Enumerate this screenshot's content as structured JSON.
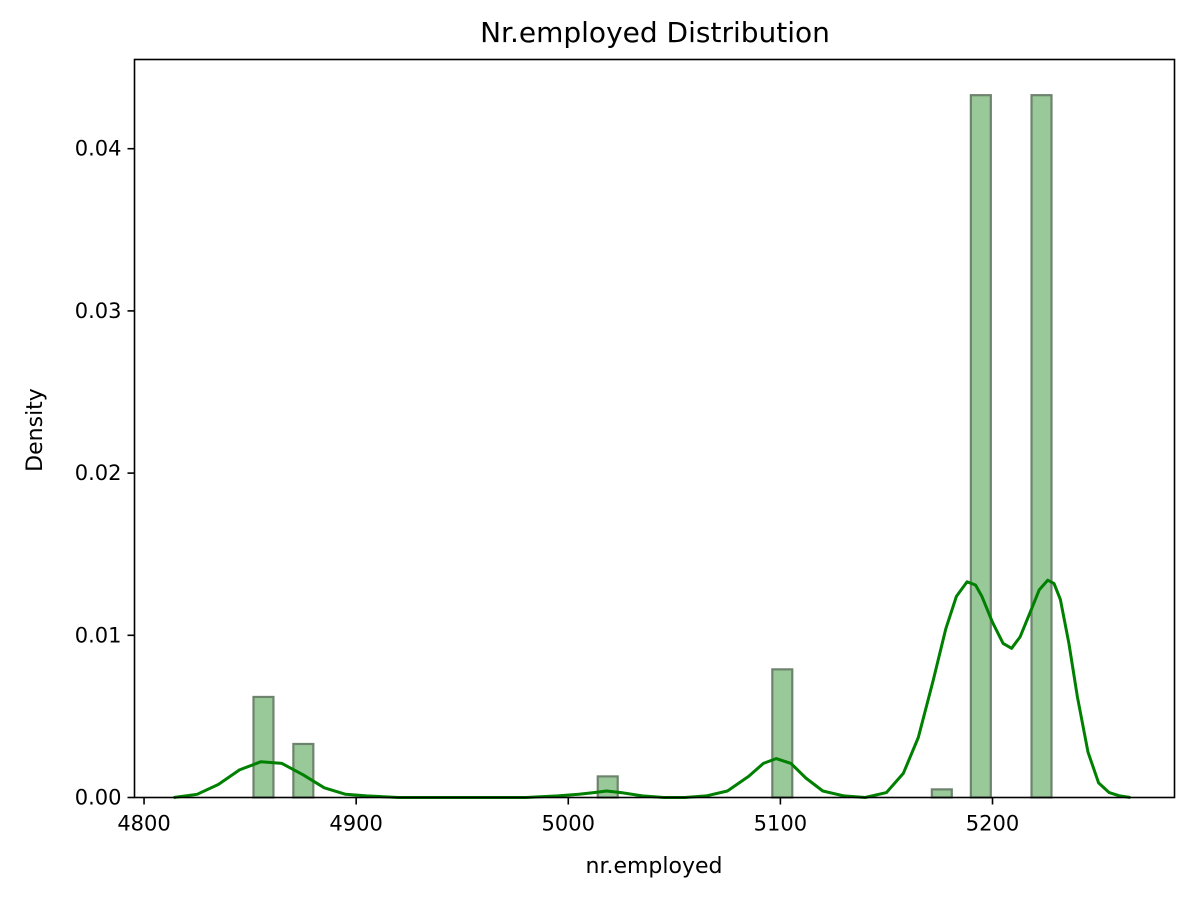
{
  "chart_data": {
    "type": "bar",
    "title": "Nr.employed Distribution",
    "xlabel": "nr.employed",
    "ylabel": "Density",
    "xlim": [
      4795.5,
      5285.8
    ],
    "ylim": [
      0,
      0.0455
    ],
    "xticks": [
      4800,
      4900,
      5000,
      5100,
      5200
    ],
    "xtick_labels": [
      "4800",
      "4900",
      "5000",
      "5100",
      "5200"
    ],
    "yticks": [
      0.0,
      0.01,
      0.02,
      0.03,
      0.04
    ],
    "ytick_labels": [
      "0.00",
      "0.01",
      "0.02",
      "0.03",
      "0.04"
    ],
    "grid": false,
    "histogram": {
      "name": "",
      "color": "#99c999",
      "edge_color": "#6e836e",
      "bins": [
        {
          "x0": 4851.6,
          "x1": 4861.0,
          "value": 0.0062
        },
        {
          "x0": 4870.4,
          "x1": 4879.8,
          "value": 0.0033
        },
        {
          "x0": 5013.9,
          "x1": 5023.3,
          "value": 0.0013
        },
        {
          "x0": 5096.2,
          "x1": 5105.6,
          "value": 0.0079
        },
        {
          "x0": 5171.4,
          "x1": 5180.8,
          "value": 0.0005
        },
        {
          "x0": 5189.8,
          "x1": 5199.2,
          "value": 0.0433
        },
        {
          "x0": 5218.4,
          "x1": 5227.8,
          "value": 0.0433
        }
      ]
    },
    "kde": {
      "name": "",
      "color": "#008000",
      "x": [
        4814,
        4825,
        4835,
        4845,
        4855,
        4865,
        4875,
        4885,
        4895,
        4905,
        4920,
        4940,
        4960,
        4980,
        4995,
        5005,
        5012,
        5018,
        5025,
        5035,
        5045,
        5055,
        5065,
        5075,
        5085,
        5092,
        5098,
        5105,
        5112,
        5120,
        5130,
        5140,
        5150,
        5158,
        5165,
        5172,
        5178,
        5183,
        5188,
        5192,
        5195,
        5200,
        5205,
        5209,
        5213,
        5218,
        5222,
        5226,
        5229,
        5232,
        5236,
        5240,
        5245,
        5250,
        5255,
        5260,
        5265
      ],
      "y": [
        0.0,
        0.0002,
        0.0008,
        0.0017,
        0.0022,
        0.0021,
        0.0014,
        0.0006,
        0.0002,
        0.0001,
        0.0,
        0.0,
        0.0,
        0.0,
        0.0001,
        0.0002,
        0.0003,
        0.0004,
        0.0003,
        0.0001,
        0.0,
        0.0,
        0.0001,
        0.0004,
        0.0013,
        0.0021,
        0.0024,
        0.0021,
        0.0012,
        0.0004,
        0.0001,
        0.0,
        0.0003,
        0.0015,
        0.0037,
        0.0072,
        0.0104,
        0.0124,
        0.0133,
        0.0131,
        0.0124,
        0.0108,
        0.0095,
        0.0092,
        0.0099,
        0.0115,
        0.0128,
        0.0134,
        0.0132,
        0.0122,
        0.0095,
        0.0062,
        0.0028,
        0.0009,
        0.0003,
        0.0001,
        0.0
      ]
    }
  }
}
